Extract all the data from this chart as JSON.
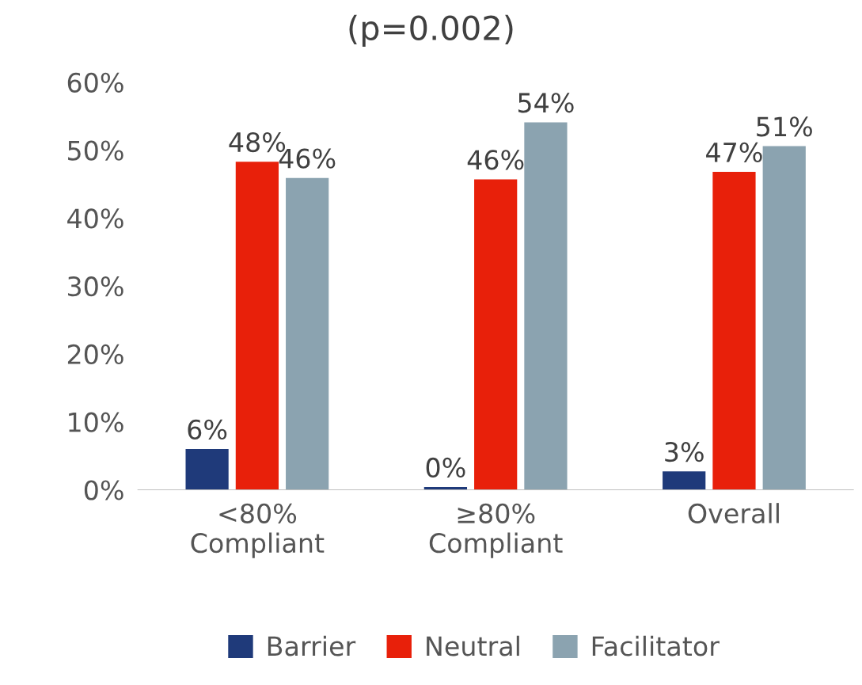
{
  "chart_data": {
    "type": "bar",
    "title": "(p=0.002)",
    "categories": [
      "<80%\nCompliant",
      "≥80%\nCompliant",
      "Overall"
    ],
    "series": [
      {
        "name": "Barrier",
        "color": "#1f3a7a",
        "values": [
          6.0,
          0.4,
          2.7
        ],
        "value_labels": [
          "6%",
          "0%",
          "3%"
        ]
      },
      {
        "name": "Neutral",
        "color": "#e8200a",
        "values": [
          48.3,
          45.7,
          46.8
        ],
        "value_labels": [
          "48%",
          "46%",
          "47%"
        ]
      },
      {
        "name": "Facilitator",
        "color": "#8ba3b0",
        "values": [
          45.9,
          54.1,
          50.6
        ],
        "value_labels": [
          "46%",
          "54%",
          "51%"
        ]
      }
    ],
    "ylim": [
      0,
      60
    ],
    "yticks": [
      {
        "value": 0,
        "label": "0%"
      },
      {
        "value": 10,
        "label": "10%"
      },
      {
        "value": 20,
        "label": "20%"
      },
      {
        "value": 30,
        "label": "30%"
      },
      {
        "value": 40,
        "label": "40%"
      },
      {
        "value": 50,
        "label": "50%"
      },
      {
        "value": 60,
        "label": "60%"
      }
    ],
    "grid": false,
    "legend": "bottom"
  }
}
